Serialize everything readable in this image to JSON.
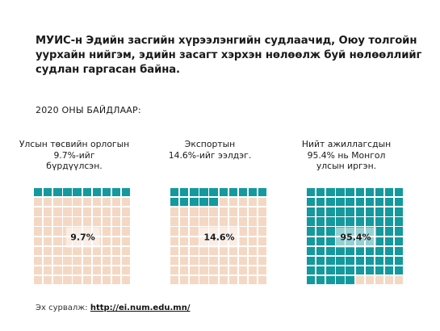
{
  "title": "МУИС-н Эдийн засгийн хүрээлэнгийн судлаачид, Оюу толгойн уурхайн нийгэм, эдийн засагт хэрхэн нөлөөлж буй нөлөөллийг судлан гаргасан байна.",
  "subhead": "2020 ОНЫ БАЙДЛААР:",
  "source": {
    "label": "Эх сурвалж:",
    "url": "http://ei.num.edu.mn/"
  },
  "colors": {
    "filled": "#13999e",
    "empty": "#f4d8c4"
  },
  "chart_data": [
    {
      "type": "waffle",
      "caption": "Улсын төсвийн орлогын  9.7%-ийг\nбүрдүүлсэн.",
      "value": 9.7,
      "label": "9.7%",
      "grid": [
        10,
        10
      ]
    },
    {
      "type": "waffle",
      "caption": "Экспортын\n14.6%-ийг ээлдэг.",
      "value": 14.6,
      "label": "14.6%",
      "grid": [
        10,
        10
      ]
    },
    {
      "type": "waffle",
      "caption": "Нийт ажиллагсдын\n95.4% нь Монгол\nулсын иргэн.",
      "value": 95.4,
      "label": "95.4%",
      "grid": [
        10,
        10
      ]
    }
  ]
}
